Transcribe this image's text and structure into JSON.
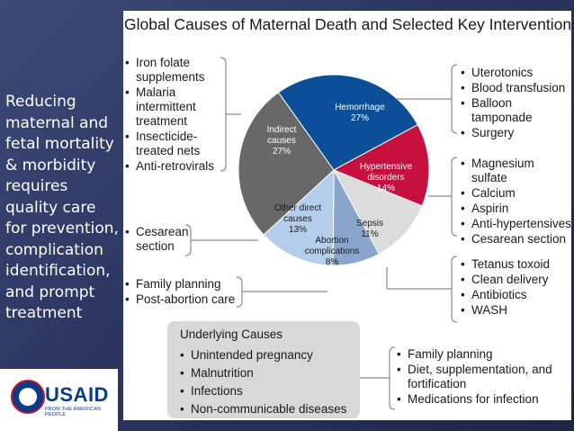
{
  "sidebar": {
    "text": "Reducing maternal and fetal mortality & morbidity requires quality care for prevention, complication identification, and prompt treatment",
    "logo": {
      "word": "USAID",
      "tagline": "FROM THE AMERICAN PEOPLE"
    }
  },
  "colors": {
    "hemorrhage": "#0b4f98",
    "hypertensive": "#c8103f",
    "sepsis": "#dcdcdc",
    "abortion": "#8aa6cf",
    "other_direct": "#b4cdea",
    "indirect": "#686868",
    "bracket": "#8a8a8a"
  },
  "chart_data": {
    "type": "pie",
    "title": "Global Causes of Maternal Death and Selected Key Interventions",
    "slices": [
      {
        "label": "Hemorrhage",
        "value": 27,
        "value_label": "27%"
      },
      {
        "label": "Hypertensive disorders",
        "value": 14,
        "value_label": "14%"
      },
      {
        "label": "Sepsis",
        "value": 11,
        "value_label": "11%"
      },
      {
        "label": "Abortion complications",
        "value": 8,
        "value_label": "8%"
      },
      {
        "label": "Other direct causes",
        "value": 13,
        "value_label": "13%"
      },
      {
        "label": "Indirect causes",
        "value": 27,
        "value_label": "27%"
      }
    ],
    "label_lines": {
      "hemorrhage": [
        "Hemorrhage",
        "27%"
      ],
      "hypertensive": [
        "Hypertensive",
        "disorders",
        "14%"
      ],
      "sepsis": [
        "Sepsis",
        "11%"
      ],
      "abortion": [
        "Abortion",
        "complications",
        "8%"
      ],
      "other_direct": [
        "Other direct",
        "causes",
        "13%"
      ],
      "indirect": [
        "Indirect",
        "causes",
        "27%"
      ]
    }
  },
  "interventions": {
    "indirect": [
      "Iron folate supplements",
      "Malaria intermittent treatment",
      "Insecticide-treated nets",
      "Anti-retrovirals"
    ],
    "other_direct": [
      "Cesarean section"
    ],
    "abortion": [
      "Family planning",
      "Post-abortion care"
    ],
    "hemorrhage": [
      "Uterotonics",
      "Blood transfusion",
      "Balloon tamponade",
      "Surgery"
    ],
    "hypertensive": [
      "Magnesium sulfate",
      "Calcium",
      "Aspirin",
      "Anti-hypertensives",
      "Cesarean section"
    ],
    "sepsis": [
      "Tetanus toxoid",
      "Clean delivery",
      "Antibiotics",
      "WASH"
    ]
  },
  "underlying": {
    "title": "Underlying Causes",
    "causes": [
      "Unintended pregnancy",
      "Malnutrition",
      "Infections",
      "Non-communicable diseases"
    ],
    "interventions": [
      "Family planning",
      "Diet, supplementation, and fortification",
      "Medications for infection"
    ]
  }
}
